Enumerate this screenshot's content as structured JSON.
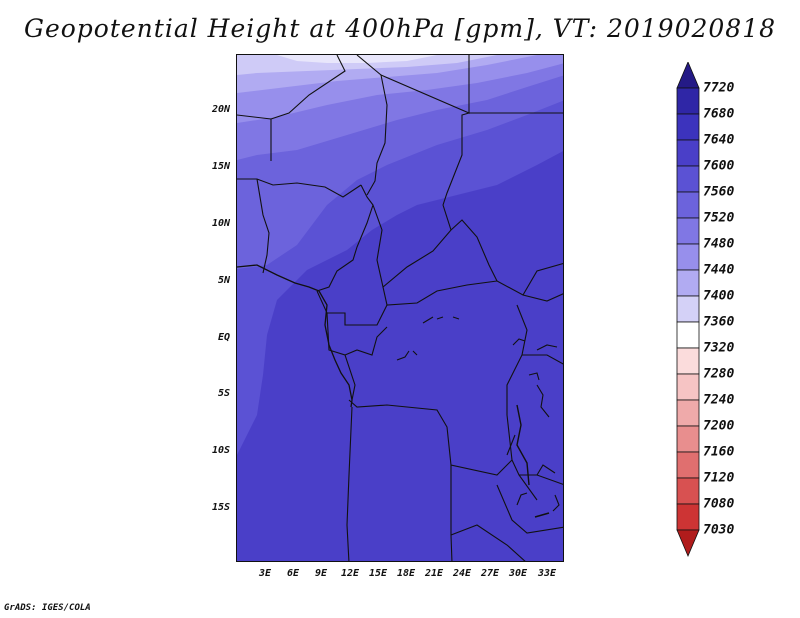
{
  "title": "Geopotential Height at 400hPa [gpm], VT: 2019020818",
  "map": {
    "y_axis_labels": [
      "20N",
      "15N",
      "10N",
      "5N",
      "EQ",
      "5S",
      "10S",
      "15S"
    ],
    "x_axis_labels": [
      "3E",
      "6E",
      "9E",
      "12E",
      "15E",
      "18E",
      "21E",
      "24E",
      "27E",
      "30E",
      "33E"
    ],
    "fill_colors": [
      "#4a3fc8",
      "#5b52d4",
      "#6c63dc",
      "#8077e4",
      "#978fec",
      "#b1abf2",
      "#cfcbf7",
      "#e8e6fb"
    ]
  },
  "colorbar": {
    "labels": [
      "7720",
      "7680",
      "7640",
      "7600",
      "7560",
      "7520",
      "7480",
      "7440",
      "7400",
      "7360",
      "7320",
      "7280",
      "7240",
      "7200",
      "7160",
      "7120",
      "7080",
      "7030"
    ],
    "colors": [
      "#241a86",
      "#2f26a6",
      "#3c33bd",
      "#4a3fc8",
      "#5b52d4",
      "#6c63dc",
      "#8077e4",
      "#978fec",
      "#b1abf2",
      "#d4d1f7",
      "#ffffff",
      "#fbdcdc",
      "#f6c4c4",
      "#efaaaa",
      "#e88e8e",
      "#e06f6f",
      "#d85151",
      "#cd3434",
      "#b01c1c"
    ]
  },
  "credit": "GrADS: IGES/COLA"
}
